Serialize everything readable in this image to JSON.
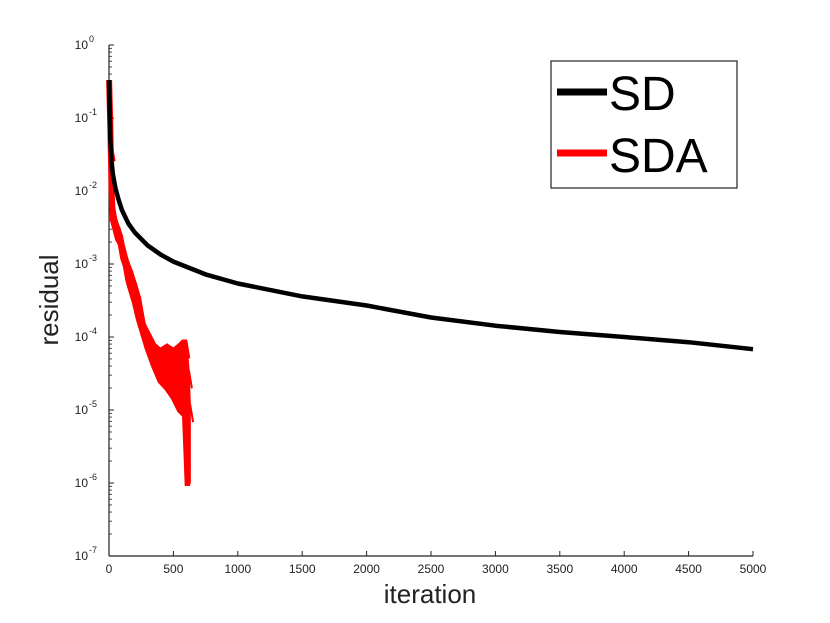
{
  "chart_data": {
    "type": "line",
    "title": "",
    "xlabel": "iteration",
    "ylabel": "residual",
    "xlim": [
      0,
      5000
    ],
    "ylim": [
      1e-07,
      1
    ],
    "yscale": "log",
    "grid": false,
    "legend_placement": "top-right",
    "x_ticks": [
      0,
      500,
      1000,
      1500,
      2000,
      2500,
      3000,
      3500,
      4000,
      4500,
      5000
    ],
    "y_ticks": [
      {
        "value": 1e-07,
        "base": "10",
        "exp": "-7"
      },
      {
        "value": 1e-06,
        "base": "10",
        "exp": "-6"
      },
      {
        "value": 1e-05,
        "base": "10",
        "exp": "-5"
      },
      {
        "value": 0.0001,
        "base": "10",
        "exp": "-4"
      },
      {
        "value": 0.001,
        "base": "10",
        "exp": "-3"
      },
      {
        "value": 0.01,
        "base": "10",
        "exp": "-2"
      },
      {
        "value": 0.1,
        "base": "10",
        "exp": "-1"
      },
      {
        "value": 1,
        "base": "10",
        "exp": "0"
      }
    ],
    "series": [
      {
        "name": "SD",
        "color": "#000000",
        "points": [
          [
            1,
            0.33
          ],
          [
            10,
            0.05
          ],
          [
            20,
            0.025
          ],
          [
            30,
            0.017
          ],
          [
            50,
            0.011
          ],
          [
            75,
            0.0075
          ],
          [
            100,
            0.0055
          ],
          [
            150,
            0.0036
          ],
          [
            200,
            0.0027
          ],
          [
            300,
            0.0018
          ],
          [
            400,
            0.00135
          ],
          [
            500,
            0.00108
          ],
          [
            750,
            0.00072
          ],
          [
            1000,
            0.00054
          ],
          [
            1500,
            0.00036
          ],
          [
            2000,
            0.00027
          ],
          [
            2500,
            0.000185
          ],
          [
            3000,
            0.000143
          ],
          [
            3500,
            0.000117
          ],
          [
            4000,
            0.0001
          ],
          [
            4500,
            8.5e-05
          ],
          [
            5000,
            6.8e-05
          ]
        ]
      },
      {
        "name": "SDA",
        "color": "#ff0000",
        "points": [
          [
            1,
            0.33
          ],
          [
            10,
            0.08
          ],
          [
            20,
            0.01
          ],
          [
            30,
            0.004
          ],
          [
            50,
            0.003
          ],
          [
            70,
            0.0022
          ],
          [
            90,
            0.0019
          ],
          [
            110,
            0.0012
          ],
          [
            130,
            0.00095
          ],
          [
            150,
            0.0006
          ],
          [
            170,
            0.00045
          ],
          [
            200,
            0.0003
          ],
          [
            230,
            0.00018
          ],
          [
            260,
            0.00012
          ],
          [
            300,
            7e-05
          ],
          [
            350,
            4e-05
          ],
          [
            400,
            2.5e-05
          ],
          [
            450,
            2e-05
          ],
          [
            500,
            1.5e-05
          ],
          [
            550,
            1e-05
          ],
          [
            590,
            8.5e-06
          ],
          [
            610,
            1e-06
          ],
          [
            630,
            1e-06
          ]
        ],
        "band_upper": [
          [
            20,
            0.045
          ],
          [
            40,
            0.006
          ],
          [
            60,
            0.004
          ],
          [
            80,
            0.0032
          ],
          [
            100,
            0.0025
          ],
          [
            120,
            0.0017
          ],
          [
            150,
            0.0011
          ],
          [
            180,
            0.0008
          ],
          [
            210,
            0.00055
          ],
          [
            240,
            0.00036
          ],
          [
            280,
            0.00015
          ],
          [
            320,
            0.00011
          ],
          [
            360,
            8e-05
          ],
          [
            400,
            7e-05
          ],
          [
            450,
            8e-05
          ],
          [
            500,
            7e-05
          ],
          [
            540,
            8e-05
          ],
          [
            570,
            9e-05
          ],
          [
            600,
            9e-05
          ],
          [
            620,
            3.5e-05
          ],
          [
            630,
            1.2e-05
          ]
        ]
      }
    ]
  }
}
